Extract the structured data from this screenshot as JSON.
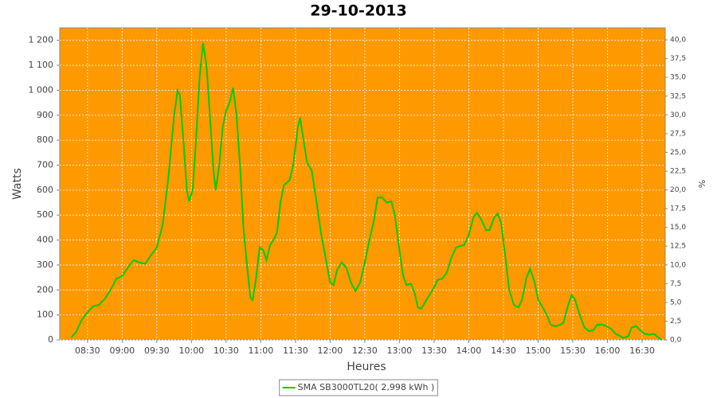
{
  "chart_data": {
    "type": "line",
    "title": "29-10-2013",
    "x_label": "Heures",
    "y_label": "Watts",
    "y2_label": "%",
    "x": [
      "08:16",
      "08:20",
      "08:25",
      "08:30",
      "08:35",
      "08:40",
      "08:45",
      "08:50",
      "08:55",
      "09:00",
      "09:05",
      "09:10",
      "09:15",
      "09:20",
      "09:25",
      "09:30",
      "09:35",
      "09:40",
      "09:45",
      "09:48",
      "09:50",
      "09:53",
      "09:56",
      "09:58",
      "10:01",
      "10:04",
      "10:07",
      "10:10",
      "10:13",
      "10:16",
      "10:19",
      "10:21",
      "10:24",
      "10:27",
      "10:30",
      "10:33",
      "10:36",
      "10:39",
      "10:42",
      "10:45",
      "10:48",
      "10:51",
      "10:53",
      "10:56",
      "10:59",
      "11:02",
      "11:05",
      "11:08",
      "11:11",
      "11:14",
      "11:17",
      "11:20",
      "11:25",
      "11:28",
      "11:32",
      "11:34",
      "11:37",
      "11:40",
      "11:44",
      "11:48",
      "11:52",
      "11:56",
      "12:00",
      "12:03",
      "12:06",
      "12:10",
      "12:14",
      "12:18",
      "12:22",
      "12:26",
      "12:30",
      "12:34",
      "12:38",
      "12:41",
      "12:45",
      "12:49",
      "12:53",
      "12:56",
      "13:00",
      "13:03",
      "13:06",
      "13:10",
      "13:13",
      "13:16",
      "13:19",
      "13:22",
      "13:26",
      "13:30",
      "13:33",
      "13:37",
      "13:41",
      "13:45",
      "13:49",
      "13:52",
      "13:56",
      "14:00",
      "14:04",
      "14:07",
      "14:11",
      "14:15",
      "14:18",
      "14:22",
      "14:25",
      "14:28",
      "14:32",
      "14:35",
      "14:39",
      "14:43",
      "14:46",
      "14:50",
      "14:53",
      "14:57",
      "15:00",
      "15:04",
      "15:08",
      "15:11",
      "15:15",
      "15:19",
      "15:22",
      "15:26",
      "15:29",
      "15:32",
      "15:36",
      "15:40",
      "15:44",
      "15:48",
      "15:51",
      "15:55",
      "15:59",
      "16:03",
      "16:07",
      "16:11",
      "16:14",
      "16:18",
      "16:21",
      "16:25",
      "16:28",
      "16:32",
      "16:36",
      "16:40",
      "16:44",
      "16:47"
    ],
    "series": [
      {
        "name": "SMA SB3000TL20( 2,998 kWh )",
        "color": "#00cc00",
        "values": [
          10,
          30,
          80,
          110,
          135,
          140,
          165,
          200,
          245,
          255,
          290,
          320,
          310,
          305,
          340,
          370,
          460,
          650,
          900,
          1000,
          980,
          800,
          600,
          555,
          600,
          800,
          1050,
          1190,
          1100,
          900,
          680,
          600,
          700,
          850,
          920,
          950,
          1010,
          900,
          700,
          450,
          300,
          170,
          160,
          250,
          370,
          360,
          320,
          380,
          400,
          430,
          550,
          620,
          640,
          700,
          850,
          890,
          800,
          710,
          680,
          560,
          430,
          330,
          230,
          220,
          280,
          310,
          290,
          230,
          195,
          230,
          310,
          400,
          480,
          570,
          570,
          550,
          555,
          500,
          360,
          260,
          220,
          225,
          190,
          130,
          125,
          150,
          180,
          210,
          240,
          245,
          270,
          330,
          370,
          375,
          380,
          420,
          490,
          510,
          480,
          440,
          440,
          490,
          505,
          470,
          320,
          200,
          140,
          130,
          160,
          250,
          285,
          230,
          160,
          130,
          95,
          60,
          55,
          60,
          70,
          140,
          180,
          160,
          100,
          50,
          35,
          40,
          60,
          62,
          55,
          45,
          25,
          15,
          8,
          15,
          50,
          55,
          40,
          25,
          20,
          25,
          10,
          0
        ]
      }
    ],
    "xlim": [
      "08:06",
      "16:50"
    ],
    "xticks": [
      "08:30",
      "09:00",
      "09:30",
      "10:00",
      "10:30",
      "11:00",
      "11:30",
      "12:00",
      "12:30",
      "13:00",
      "13:30",
      "14:00",
      "14:30",
      "15:00",
      "15:30",
      "16:00",
      "16:30"
    ],
    "ylim": [
      0,
      1250
    ],
    "yticks": [
      0,
      100,
      200,
      300,
      400,
      500,
      600,
      700,
      800,
      900,
      {
        "value": 1000,
        "label": "1 000"
      },
      {
        "value": 1100,
        "label": "1 100"
      },
      {
        "value": 1200,
        "label": "1 200"
      }
    ],
    "y2lim": [
      0,
      41.6
    ],
    "y2ticks": [
      {
        "value": 0,
        "label": "0,0"
      },
      {
        "value": 2.5,
        "label": "2,5"
      },
      {
        "value": 5,
        "label": "5,0"
      },
      {
        "value": 7.5,
        "label": "7,5"
      },
      {
        "value": 10,
        "label": "10,0"
      },
      {
        "value": 12.5,
        "label": "12,5"
      },
      {
        "value": 15,
        "label": "15,0"
      },
      {
        "value": 17.5,
        "label": "17,5"
      },
      {
        "value": 20,
        "label": "20,0"
      },
      {
        "value": 22.5,
        "label": "22,5"
      },
      {
        "value": 25,
        "label": "25,0"
      },
      {
        "value": 27.5,
        "label": "27,5"
      },
      {
        "value": 30,
        "label": "30,0"
      },
      {
        "value": 32.5,
        "label": "32,5"
      },
      {
        "value": 35,
        "label": "35,0"
      },
      {
        "value": 37.5,
        "label": "37,5"
      },
      {
        "value": 40,
        "label": "40,0"
      }
    ],
    "grid": true,
    "legend": "bottom"
  }
}
